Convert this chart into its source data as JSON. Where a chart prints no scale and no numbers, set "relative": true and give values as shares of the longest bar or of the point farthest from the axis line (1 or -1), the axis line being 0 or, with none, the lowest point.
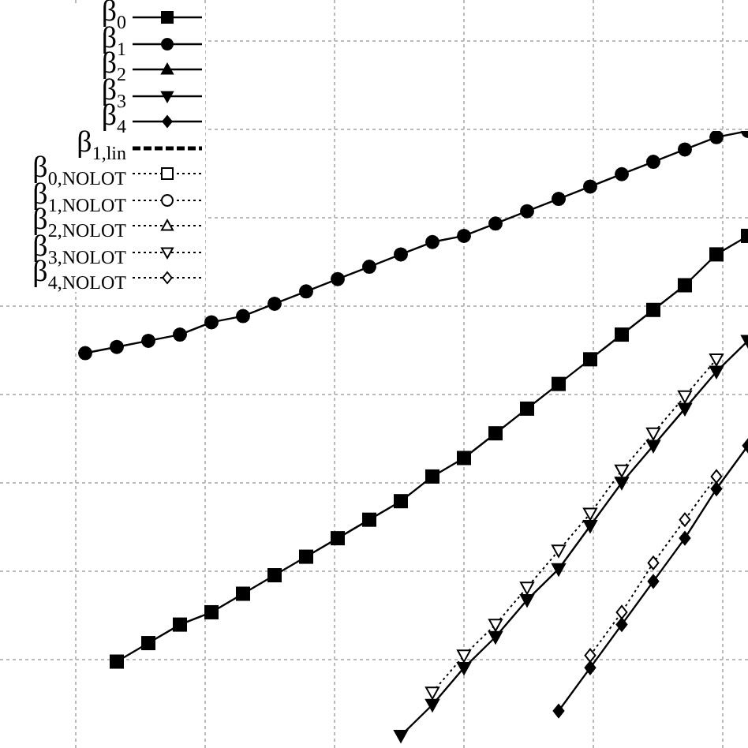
{
  "chart_data": {
    "type": "line",
    "relative": true,
    "grid": true,
    "legend": "top left",
    "categories": [
      null,
      null,
      null,
      null,
      null,
      null,
      null,
      null,
      null,
      null,
      null,
      null,
      null,
      null,
      null,
      null,
      null,
      null,
      null,
      null,
      null,
      null
    ],
    "series": [
      {
        "name": "β$_{0}$",
        "color": "#000000",
        "marker": "square",
        "line_style": "solid",
        "values": [
          null,
          0.14,
          0.17,
          0.2,
          0.22,
          0.25,
          0.28,
          0.31,
          0.34,
          0.37,
          0.4,
          0.44,
          0.47,
          0.51,
          0.55,
          0.59,
          0.63,
          0.67,
          0.71,
          0.75,
          0.8,
          0.83
        ]
      },
      {
        "name": "β$_{1}$",
        "color": "#000000",
        "marker": "circle",
        "line_style": "solid",
        "values": [
          0.64,
          0.65,
          0.66,
          0.67,
          0.69,
          0.7,
          0.72,
          0.74,
          0.76,
          0.78,
          0.8,
          0.82,
          0.83,
          0.85,
          0.87,
          0.89,
          0.91,
          0.93,
          0.95,
          0.97,
          0.99,
          1
        ]
      },
      {
        "name": "β$_{2}$",
        "color": "#000000",
        "marker": "triangle",
        "line_style": "solid",
        "values": [
          null,
          null,
          null,
          null,
          null,
          null,
          null,
          null,
          null,
          null,
          null,
          null,
          null,
          null,
          null,
          null,
          null,
          null,
          null,
          null,
          null,
          null
        ]
      },
      {
        "name": "β$_{3}$",
        "color": "#000000",
        "marker": "triangle-down",
        "line_style": "solid",
        "values": [
          null,
          null,
          null,
          null,
          null,
          null,
          null,
          null,
          null,
          null,
          0.02,
          0.07,
          0.13,
          0.18,
          0.24,
          0.29,
          0.36,
          0.43,
          0.49,
          0.55,
          0.61,
          0.66
        ]
      },
      {
        "name": "β$_{4}$",
        "color": "#000000",
        "marker": "diamond",
        "line_style": "solid",
        "values": [
          null,
          null,
          null,
          null,
          null,
          null,
          null,
          null,
          null,
          null,
          null,
          null,
          null,
          null,
          null,
          0.06,
          0.13,
          0.2,
          0.27,
          0.34,
          0.42,
          0.49
        ]
      },
      {
        "name": "β$_{1,lin}$",
        "color": "#000000",
        "marker": "none",
        "line_style": "dashed",
        "values": [
          null,
          null,
          null,
          null,
          null,
          null,
          null,
          null,
          null,
          null,
          null,
          null,
          null,
          null,
          null,
          null,
          null,
          null,
          null,
          null,
          null,
          null
        ]
      },
      {
        "name": "β$_{0,NOLOT}$",
        "color": "#000000",
        "marker": "square",
        "line_style": "dotted",
        "values": [
          null,
          null,
          null,
          null,
          null,
          null,
          null,
          null,
          null,
          null,
          null,
          null,
          null,
          null,
          null,
          null,
          null,
          null,
          null,
          null,
          null,
          null
        ]
      },
      {
        "name": "β$_{1,NOLOT}$",
        "color": "#000000",
        "marker": "circle",
        "line_style": "dotted",
        "values": [
          null,
          null,
          null,
          null,
          null,
          null,
          null,
          null,
          null,
          null,
          null,
          null,
          null,
          null,
          null,
          null,
          null,
          null,
          null,
          null,
          null,
          null
        ]
      },
      {
        "name": "β$_{2,NOLOT}$",
        "color": "#000000",
        "marker": "triangle",
        "line_style": "dotted",
        "values": [
          null,
          null,
          null,
          null,
          null,
          null,
          null,
          null,
          null,
          null,
          null,
          null,
          null,
          null,
          null,
          null,
          null,
          null,
          null,
          null,
          null,
          null
        ]
      },
      {
        "name": "β$_{3,NOLOT}$",
        "color": "#000000",
        "marker": "triangle-down",
        "line_style": "dotted",
        "values": [
          null,
          null,
          null,
          null,
          null,
          null,
          null,
          null,
          null,
          null,
          null,
          0.09,
          0.15,
          0.2,
          0.26,
          0.32,
          0.38,
          0.45,
          0.51,
          0.57,
          0.63,
          null
        ]
      },
      {
        "name": "β$_{4,NOLOT}$",
        "color": "#000000",
        "marker": "diamond",
        "line_style": "dotted",
        "values": [
          null,
          null,
          null,
          null,
          null,
          null,
          null,
          null,
          null,
          null,
          null,
          null,
          null,
          null,
          null,
          null,
          0.15,
          0.22,
          0.3,
          0.37,
          0.44,
          null
        ]
      }
    ]
  }
}
